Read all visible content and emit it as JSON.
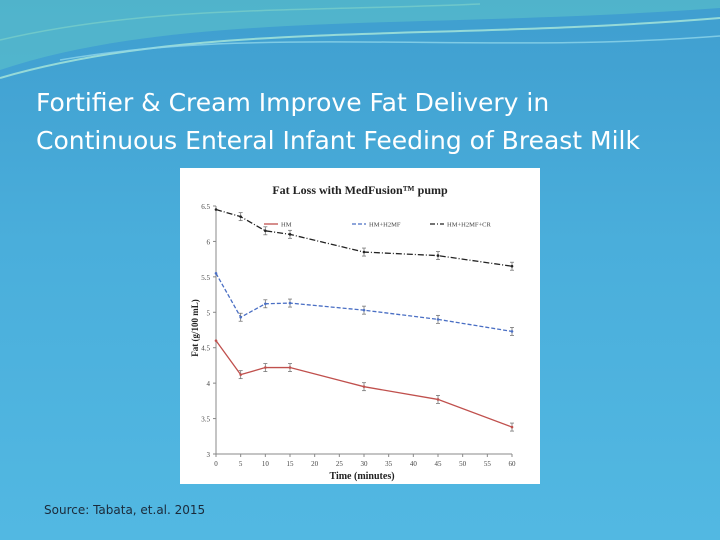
{
  "slide": {
    "title_line1": "Fortifier & Cream Improve Fat Delivery in",
    "title_line2": "Continuous Enteral Infant Feeding of Breast Milk",
    "source": "Source: Tabata, et.al. 2015"
  },
  "chart_data": {
    "type": "line",
    "title": "Fat Loss with MedFusion™ pump",
    "xlabel": "Time (minutes)",
    "ylabel": "Fat (g/100 mL)",
    "x": [
      0,
      5,
      10,
      15,
      30,
      45,
      60
    ],
    "xticks": [
      "0",
      "5",
      "10",
      "15",
      "20",
      "25",
      "30",
      "35",
      "40",
      "45",
      "50",
      "55",
      "60"
    ],
    "yticks": [
      "3",
      "3.5",
      "4",
      "4.5",
      "5",
      "5.5",
      "6",
      "6.5"
    ],
    "xlim": [
      0,
      60
    ],
    "ylim": [
      3,
      6.5
    ],
    "grid": false,
    "legend_position": "top",
    "series": [
      {
        "name": "HM",
        "color": "#c0504d",
        "dash": "solid",
        "values": [
          4.6,
          4.12,
          4.22,
          4.22,
          3.95,
          3.77,
          3.38
        ]
      },
      {
        "name": "HM+H2MF",
        "color": "#4a6fc4",
        "dash": "dashed",
        "values": [
          5.55,
          4.93,
          5.12,
          5.13,
          5.03,
          4.9,
          4.73
        ]
      },
      {
        "name": "HM+H2MF+CR",
        "color": "#222222",
        "dash": "dashdot",
        "values": [
          6.45,
          6.35,
          6.15,
          6.1,
          5.85,
          5.8,
          5.65
        ]
      }
    ]
  }
}
